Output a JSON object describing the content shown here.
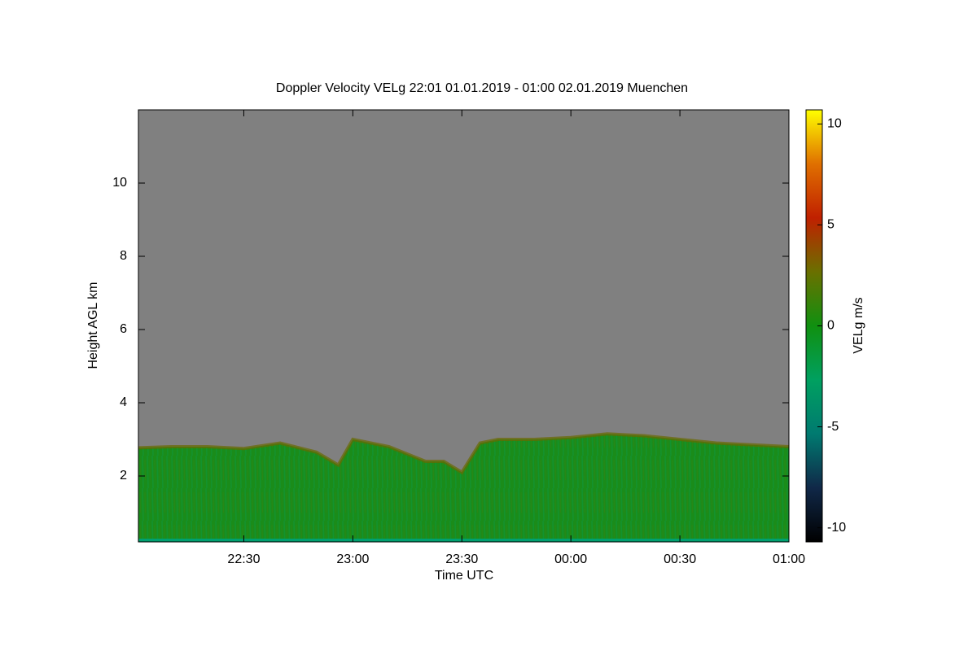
{
  "chart_data": {
    "type": "area",
    "title": "Doppler Velocity VELg   22:01 01.01.2019 - 01:00 02.01.2019 Muenchen",
    "x_label": "Time UTC",
    "y_label": "Height AGL km",
    "x": [
      1,
      10,
      20,
      30,
      40,
      50,
      56,
      60,
      70,
      80,
      85,
      90,
      95,
      100,
      110,
      120,
      130,
      140,
      150,
      160,
      170,
      180
    ],
    "values": [
      2.77,
      2.8,
      2.8,
      2.75,
      2.9,
      2.65,
      2.3,
      3.0,
      2.8,
      2.4,
      2.4,
      2.1,
      2.9,
      3.0,
      3.0,
      3.05,
      3.15,
      3.1,
      3.0,
      2.9,
      2.85,
      2.8
    ],
    "color": "#1a8c1a",
    "background_color": "#808080",
    "xlim": [
      1,
      180
    ],
    "xticks": [
      {
        "value": 30,
        "label": "22:30"
      },
      {
        "value": 60,
        "label": "23:00"
      },
      {
        "value": 90,
        "label": "23:30"
      },
      {
        "value": 120,
        "label": "00:00"
      },
      {
        "value": 150,
        "label": "00:30"
      },
      {
        "value": 180,
        "label": "01:00"
      }
    ],
    "ylim": [
      0.2,
      12
    ],
    "yticks": [
      2,
      4,
      6,
      8,
      10
    ],
    "colorbar": {
      "label": "VELg m/s",
      "lim": [
        -10.7,
        10.7
      ],
      "ticks": [
        -10,
        -5,
        0,
        5,
        10
      ],
      "colors": [
        "#000000",
        "#102848",
        "#007a70",
        "#00a060",
        "#109010",
        "#6a7000",
        "#c02000",
        "#e07000",
        "#ffff00"
      ]
    }
  }
}
